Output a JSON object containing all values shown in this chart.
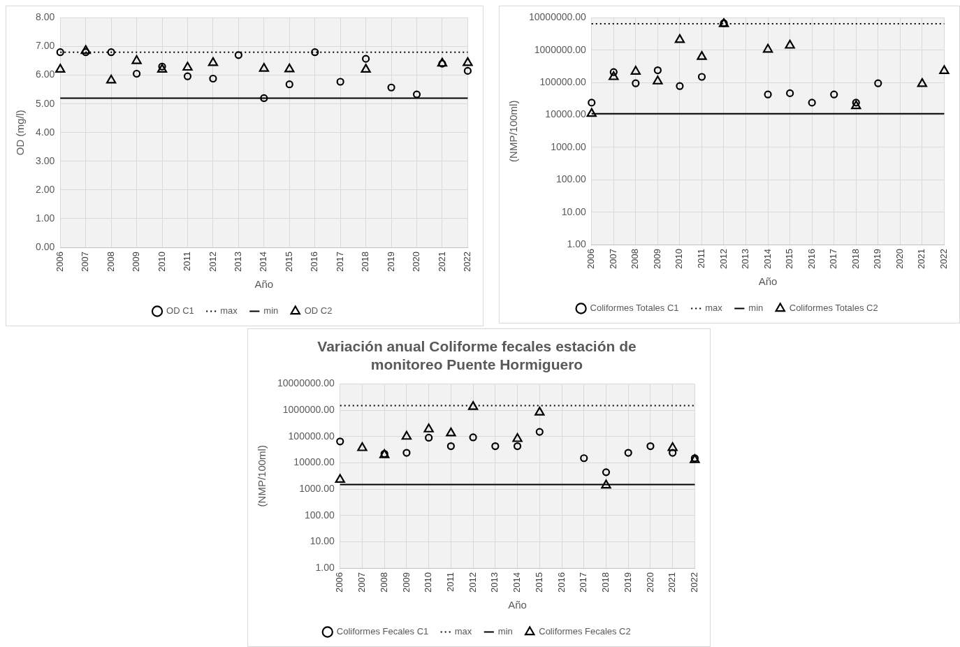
{
  "chart_data": [
    {
      "type": "scatter",
      "xlabel": "Año",
      "ylabel": "OD (mg/l)",
      "categories": [
        "2006",
        "2007",
        "2008",
        "2009",
        "2010",
        "2011",
        "2012",
        "2013",
        "2014",
        "2015",
        "2016",
        "2017",
        "2018",
        "2019",
        "2020",
        "2021",
        "2022"
      ],
      "ylim": [
        0,
        8
      ],
      "yticks": [
        {
          "value": 0,
          "label": "0.00"
        },
        {
          "value": 1,
          "label": "1.00"
        },
        {
          "value": 2,
          "label": "2.00"
        },
        {
          "value": 3,
          "label": "3.00"
        },
        {
          "value": 4,
          "label": "4.00"
        },
        {
          "value": 5,
          "label": "5.00"
        },
        {
          "value": 6,
          "label": "6.00"
        },
        {
          "value": 7,
          "label": "7.00"
        },
        {
          "value": 8,
          "label": "8.00"
        }
      ],
      "grid": true,
      "legend": "bottom",
      "series": [
        {
          "name": "OD C1",
          "type": "scatter",
          "marker": "circle",
          "color": "#000000",
          "values": [
            6.8,
            6.8,
            6.8,
            6.05,
            6.3,
            5.96,
            5.88,
            6.7,
            5.2,
            5.68,
            6.8,
            5.77,
            6.57,
            5.57,
            5.33,
            6.4,
            6.15
          ]
        },
        {
          "name": "max",
          "type": "line",
          "marker": "none",
          "line_style": "dotted",
          "color": "#000000",
          "values": [
            6.8,
            6.8,
            6.8,
            6.8,
            6.8,
            6.8,
            6.8,
            6.8,
            6.8,
            6.8,
            6.8,
            6.8,
            6.8,
            6.8,
            6.8,
            6.8,
            6.8
          ]
        },
        {
          "name": "min",
          "type": "line",
          "marker": "none",
          "line_style": "solid",
          "color": "#000000",
          "values": [
            5.2,
            5.2,
            5.2,
            5.2,
            5.2,
            5.2,
            5.2,
            5.2,
            5.2,
            5.2,
            5.2,
            5.2,
            5.2,
            5.2,
            5.2,
            5.2,
            5.2
          ]
        },
        {
          "name": "OD C2",
          "type": "scatter",
          "marker": "triangle",
          "color": "#000000",
          "values": [
            6.2,
            6.85,
            5.82,
            6.5,
            6.2,
            6.27,
            6.43,
            null,
            6.23,
            6.21,
            null,
            null,
            6.2,
            null,
            null,
            6.41,
            6.43
          ]
        }
      ]
    },
    {
      "type": "scatter",
      "xlabel": "Año",
      "ylabel": "(NMP/100ml)",
      "categories": [
        "2006",
        "2007",
        "2008",
        "2009",
        "2010",
        "2011",
        "2012",
        "2013",
        "2014",
        "2015",
        "2016",
        "2017",
        "2018",
        "2019",
        "2020",
        "2021",
        "2022"
      ],
      "log": "y",
      "ylim": [
        1,
        10000000
      ],
      "yticks": [
        {
          "value": 1,
          "label": "1.00"
        },
        {
          "value": 10,
          "label": "10.00"
        },
        {
          "value": 100,
          "label": "100.00"
        },
        {
          "value": 1000,
          "label": "1000.00"
        },
        {
          "value": 10000,
          "label": "10000.00"
        },
        {
          "value": 100000,
          "label": "100000.00"
        },
        {
          "value": 1000000,
          "label": "1000000.00"
        },
        {
          "value": 10000000,
          "label": "10000000.00"
        }
      ],
      "grid": true,
      "legend": "bottom",
      "series": [
        {
          "name": "Coliformes Totales C1",
          "type": "scatter",
          "marker": "circle",
          "color": "#000000",
          "values": [
            24000,
            210000,
            95000,
            240000,
            78000,
            150000,
            6800000,
            null,
            43000,
            47000,
            24000,
            43000,
            24000,
            95000,
            null,
            null,
            null
          ]
        },
        {
          "name": "max",
          "type": "line",
          "marker": "none",
          "line_style": "dotted",
          "color": "#000000",
          "values": [
            6500000,
            6500000,
            6500000,
            6500000,
            6500000,
            6500000,
            6500000,
            6500000,
            6500000,
            6500000,
            6500000,
            6500000,
            6500000,
            6500000,
            6500000,
            6500000,
            6500000
          ]
        },
        {
          "name": "min",
          "type": "line",
          "marker": "none",
          "line_style": "solid",
          "color": "#000000",
          "values": [
            11000,
            11000,
            11000,
            11000,
            11000,
            11000,
            11000,
            11000,
            11000,
            11000,
            11000,
            11000,
            11000,
            11000,
            11000,
            11000,
            11000
          ]
        },
        {
          "name": "Coliformes Totales C2",
          "type": "scatter",
          "marker": "triangle",
          "color": "#000000",
          "values": [
            11000,
            150000,
            220000,
            110000,
            2100000,
            630000,
            6500000,
            null,
            1050000,
            1400000,
            null,
            null,
            19000,
            null,
            null,
            92000,
            230000
          ]
        }
      ]
    },
    {
      "type": "scatter",
      "title": "Variación anual Coliforme fecales estación de monitoreo Puente Hormiguero",
      "xlabel": "Año",
      "ylabel": "(NMP/100ml)",
      "categories": [
        "2006",
        "2007",
        "2008",
        "2009",
        "2010",
        "2011",
        "2012",
        "2013",
        "2014",
        "2015",
        "2016",
        "2017",
        "2018",
        "2019",
        "2020",
        "2021",
        "2022"
      ],
      "log": "y",
      "ylim": [
        1,
        10000000
      ],
      "yticks": [
        {
          "value": 1,
          "label": "1.00"
        },
        {
          "value": 10,
          "label": "10.00"
        },
        {
          "value": 100,
          "label": "100.00"
        },
        {
          "value": 1000,
          "label": "1000.00"
        },
        {
          "value": 10000,
          "label": "10000.00"
        },
        {
          "value": 100000,
          "label": "100000.00"
        },
        {
          "value": 1000000,
          "label": "1000000.00"
        },
        {
          "value": 10000000,
          "label": "10000000.00"
        }
      ],
      "grid": true,
      "legend": "bottom",
      "series": [
        {
          "name": "Coliformes Fecales C1",
          "type": "scatter",
          "marker": "circle",
          "color": "#000000",
          "values": [
            65000,
            null,
            22000,
            24000,
            90000,
            43000,
            93000,
            43000,
            43000,
            150000,
            null,
            15000,
            4400,
            24000,
            43000,
            24000,
            15000
          ]
        },
        {
          "name": "max",
          "type": "line",
          "marker": "none",
          "line_style": "dotted",
          "color": "#000000",
          "values": [
            1500000,
            1500000,
            1500000,
            1500000,
            1500000,
            1500000,
            1500000,
            1500000,
            1500000,
            1500000,
            1500000,
            1500000,
            1500000,
            1500000,
            1500000,
            1500000,
            1500000
          ]
        },
        {
          "name": "min",
          "type": "line",
          "marker": "none",
          "line_style": "solid",
          "color": "#000000",
          "values": [
            1500,
            1500,
            1500,
            1500,
            1500,
            1500,
            1500,
            1500,
            1500,
            1500,
            1500,
            1500,
            1500,
            1500,
            1500,
            1500,
            1500
          ]
        },
        {
          "name": "Coliformes Fecales C2",
          "type": "scatter",
          "marker": "triangle",
          "color": "#000000",
          "values": [
            2300,
            37000,
            20000,
            100000,
            190000,
            135000,
            1350000,
            null,
            82000,
            830000,
            null,
            null,
            1400,
            null,
            null,
            37000,
            13000
          ]
        }
      ]
    }
  ]
}
